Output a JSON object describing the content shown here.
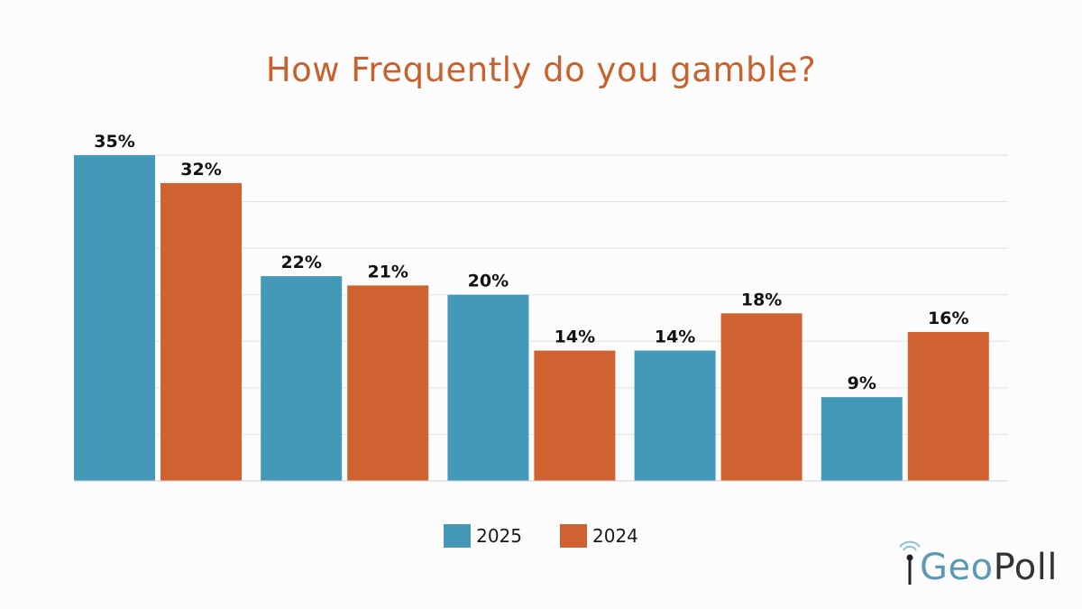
{
  "chart_data": {
    "type": "bar",
    "title": "How Frequently do you gamble?",
    "categories": [
      "",
      "",
      "",
      "",
      ""
    ],
    "series": [
      {
        "name": "2025",
        "color": "#4599b8",
        "values": [
          35,
          22,
          20,
          14,
          9
        ],
        "labels": [
          "35%",
          "22%",
          "20%",
          "14%",
          "9%"
        ]
      },
      {
        "name": "2024",
        "color": "#cf6230",
        "values": [
          32,
          21,
          14,
          18,
          16
        ],
        "labels": [
          "32%",
          "21%",
          "14%",
          "18%",
          "16%"
        ]
      }
    ],
    "ylim": [
      0,
      35
    ],
    "grid": true,
    "legend_position": "bottom-center",
    "xlabel": "",
    "ylabel": ""
  },
  "logo": {
    "text_geo": "Geo",
    "text_poll": "Poll",
    "icon": "signal-icon"
  }
}
